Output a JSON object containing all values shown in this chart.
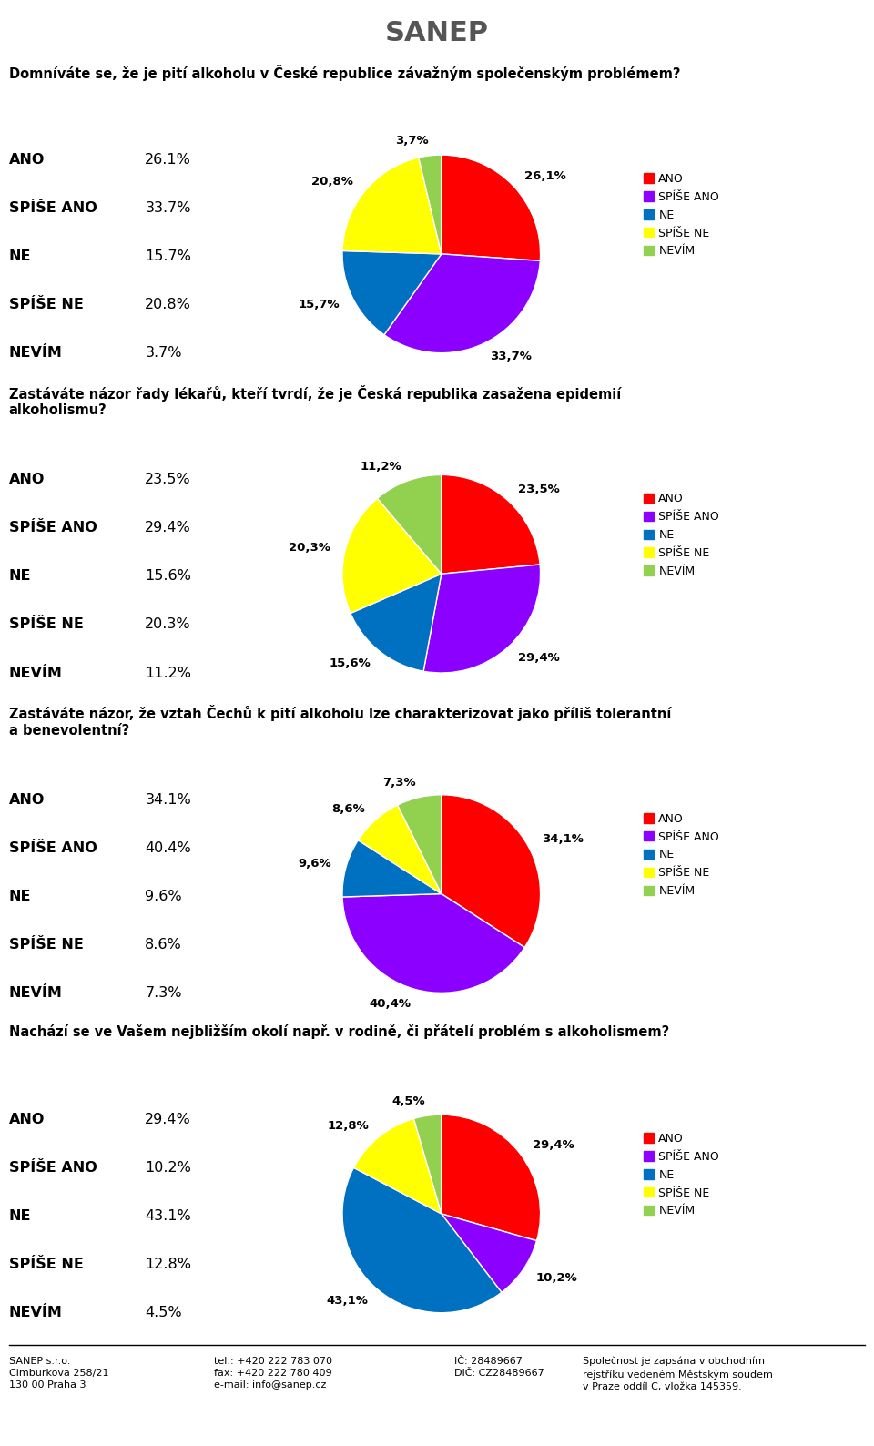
{
  "charts": [
    {
      "question": "Domníváte se, že je pití alkoholu v České republice závažným společenským problémem?",
      "labels": [
        "ANO",
        "SPÍŠE ANO",
        "NE",
        "SPÍŠE NE",
        "NEVÍM"
      ],
      "values": [
        26.1,
        33.7,
        15.7,
        20.8,
        3.7
      ],
      "colors": [
        "#FF0000",
        "#8B00FF",
        "#0070C0",
        "#FFFF00",
        "#92D050"
      ],
      "pie_labels": [
        "26,1%",
        "33,7%",
        "15,7%",
        "20,8%",
        "3,7%"
      ],
      "stat_values": [
        "26.1%",
        "33.7%",
        "15.7%",
        "20.8%",
        "3.7%"
      ],
      "startangle": 90
    },
    {
      "question": "Zastáváte názor řady lékařů, kteří tvrdí, že je Česká republika zasažena epidemií\nalkoholismu?",
      "labels": [
        "ANO",
        "SPÍŠE ANO",
        "NE",
        "SPÍŠE NE",
        "NEVÍM"
      ],
      "values": [
        23.5,
        29.4,
        15.6,
        20.3,
        11.2
      ],
      "colors": [
        "#FF0000",
        "#8B00FF",
        "#0070C0",
        "#FFFF00",
        "#92D050"
      ],
      "pie_labels": [
        "23,5%",
        "29,4%",
        "15,6%",
        "20,3%",
        "11,2%"
      ],
      "stat_values": [
        "23.5%",
        "29.4%",
        "15.6%",
        "20.3%",
        "11.2%"
      ],
      "startangle": 90
    },
    {
      "question": "Zastáváte názor, že vztah Čechů k pití alkoholu lze charakterizovat jako příliš tolerantní\na benevolentní?",
      "labels": [
        "ANO",
        "SPÍŠE ANO",
        "NE",
        "SPÍŠE NE",
        "NEVÍM"
      ],
      "values": [
        34.1,
        40.4,
        9.6,
        8.6,
        7.3
      ],
      "colors": [
        "#FF0000",
        "#8B00FF",
        "#0070C0",
        "#FFFF00",
        "#92D050"
      ],
      "pie_labels": [
        "34,1%",
        "40,4%",
        "9,6%",
        "8,6%",
        "7,3%"
      ],
      "stat_values": [
        "34.1%",
        "40.4%",
        "9.6%",
        "8.6%",
        "7.3%"
      ],
      "startangle": 90
    },
    {
      "question": "Nachází se ve Vašem nejbližším okolí např. v rodině, či přátelí problém s alkoholismem?",
      "labels": [
        "ANO",
        "SPÍŠE ANO",
        "NE",
        "SPÍŠE NE",
        "NEVÍM"
      ],
      "values": [
        29.4,
        10.2,
        43.1,
        12.8,
        4.5
      ],
      "colors": [
        "#FF0000",
        "#8B00FF",
        "#0070C0",
        "#FFFF00",
        "#92D050"
      ],
      "pie_labels": [
        "29,4%",
        "10,2%",
        "43,1%",
        "12,8%",
        "4,5%"
      ],
      "stat_values": [
        "29.4%",
        "10.2%",
        "43.1%",
        "12.8%",
        "4.5%"
      ],
      "startangle": 90
    }
  ],
  "footer_col1": "SANEP s.r.o.\nCimburkova 258/21\n130 00 Praha 3",
  "footer_col2": "tel.: +420 222 783 070\nfax: +420 222 780 409\ne-mail: info@sanep.cz",
  "footer_col3": "IČ: 28489667\nDIČ: CZ28489667",
  "footer_col4": "Společnost je zapsána v obchodním\nrejstříku vedeném Městským soudem\nv Praze oddíl C, vložka 145359.",
  "legend_labels": [
    "ANO",
    "SPÍŠE ANO",
    "NE",
    "SPÍŠE NE",
    "NEVÍM"
  ],
  "legend_colors": [
    "#FF0000",
    "#8B00FF",
    "#0070C0",
    "#FFFF00",
    "#92D050"
  ],
  "bg_color": "#FFFFFF",
  "question_fontsize": 10.5,
  "stat_label_fontsize": 11.5,
  "stat_value_fontsize": 11.5,
  "pie_label_fontsize": 9.5,
  "legend_fontsize": 9,
  "footer_fontsize": 8
}
